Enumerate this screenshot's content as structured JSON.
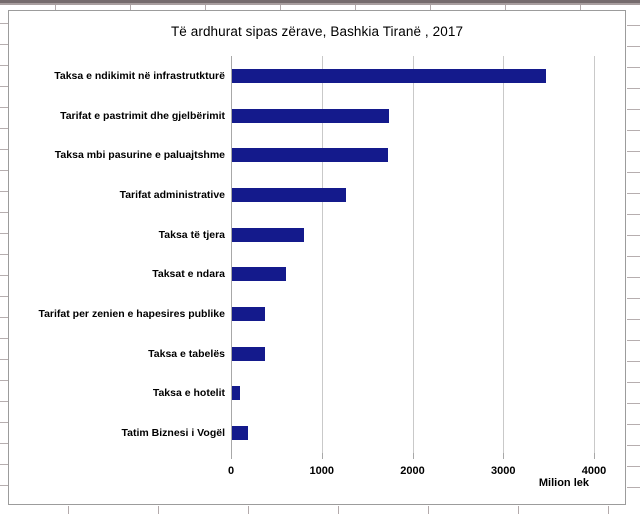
{
  "chart_data": {
    "type": "bar",
    "orientation": "horizontal",
    "title": "Të ardhurat sipas zërave, Bashkia Tiranë , 2017",
    "categories": [
      "Taksa e ndikimit në infrastrutkturë",
      "Tarifat e pastrimit dhe gjelbërimit",
      "Taksa mbi pasurine e paluajtshme",
      "Tarifat administrative",
      "Taksa të tjera",
      "Taksat e ndara",
      "Tarifat per zenien e hapesires publike",
      "Taksa e tabelës",
      "Taksa e hotelit",
      "Tatim Biznesi i Vogël"
    ],
    "values": [
      3460,
      1730,
      1720,
      1255,
      795,
      595,
      365,
      365,
      90,
      175
    ],
    "xlabel": "Milion lek",
    "xlim": [
      0,
      4000
    ],
    "xticks": [
      "0",
      "1000",
      "2000",
      "3000",
      "4000"
    ],
    "grid": true,
    "legend": false,
    "colors": {
      "bar": "#141a8c",
      "gridline": "#c9c9c9",
      "axis": "#a8a8a8",
      "text": "#000000",
      "chart_border": "#9c9c9c"
    }
  }
}
